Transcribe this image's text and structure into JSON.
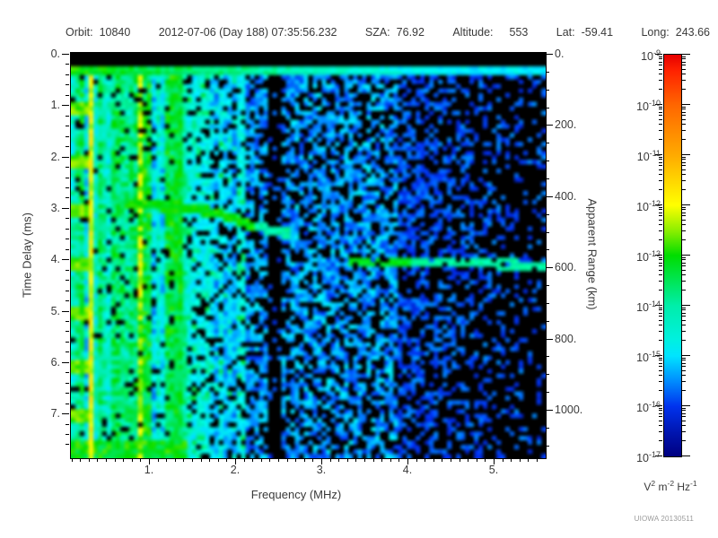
{
  "header": {
    "orbit_label": "Orbit:",
    "orbit": "10840",
    "datetime": "2012-07-06 (Day 188) 07:35:56.232",
    "sza_label": "SZA:",
    "sza": "76.92",
    "altitude_label": "Altitude:",
    "altitude": "553",
    "lat_label": "Lat:",
    "lat": "-59.41",
    "long_label": "Long:",
    "long": "243.66"
  },
  "watermark": "UIOWA 20130511",
  "chart_data": {
    "type": "heatmap",
    "subtype": "radar-sounder-ionogram-spectrogram",
    "xlabel": "Frequency (MHz)",
    "ylabel_left": "Time Delay (ms)",
    "ylabel_right": "Apparent Range (km)",
    "xlim_mhz": [
      0.08,
      5.6
    ],
    "ylim_ms": [
      0,
      7.85
    ],
    "ylim_right_km": [
      0,
      1135
    ],
    "grid": false,
    "xticks": {
      "values": [
        1,
        2,
        3,
        4,
        5
      ],
      "labels": [
        "1.",
        "2.",
        "3.",
        "4.",
        "5."
      ],
      "minor_step": 0.1
    },
    "yticks": {
      "values": [
        0,
        1,
        2,
        3,
        4,
        5,
        6,
        7
      ],
      "labels": [
        "0.",
        "1.",
        "2.",
        "3.",
        "4.",
        "5.",
        "6.",
        "7."
      ],
      "minor_step": 0.2
    },
    "right_ticks": {
      "values": [
        0,
        200,
        400,
        600,
        800,
        1000
      ],
      "labels": [
        "0.",
        "200.",
        "400.",
        "600.",
        "800.",
        "1000."
      ],
      "minor_step": 50
    },
    "colorbar": {
      "scale": "log",
      "tick_exponents": [
        -9,
        -10,
        -11,
        -12,
        -13,
        -14,
        -15,
        -16,
        -17
      ],
      "unit_segments": [
        {
          "base": "V",
          "exp": "2"
        },
        {
          "base": "m",
          "exp": "-2"
        },
        {
          "base": "Hz",
          "exp": "-1"
        }
      ],
      "gradient_stops": [
        {
          "pct": 0,
          "color": "#e60000"
        },
        {
          "pct": 4,
          "color": "#ff2200"
        },
        {
          "pct": 12.5,
          "color": "#ff6600"
        },
        {
          "pct": 25,
          "color": "#ffaa00"
        },
        {
          "pct": 34,
          "color": "#ffe800"
        },
        {
          "pct": 37.5,
          "color": "#ffff00"
        },
        {
          "pct": 44,
          "color": "#88ee00"
        },
        {
          "pct": 50,
          "color": "#00dd00"
        },
        {
          "pct": 62.5,
          "color": "#00eeaa"
        },
        {
          "pct": 71,
          "color": "#00f0e0"
        },
        {
          "pct": 75,
          "color": "#00e4ff"
        },
        {
          "pct": 81,
          "color": "#0090ff"
        },
        {
          "pct": 87.5,
          "color": "#0033ee"
        },
        {
          "pct": 94,
          "color": "#0015b0"
        },
        {
          "pct": 100,
          "color": "#000080"
        }
      ]
    },
    "features": {
      "transmit_pulse_band": {
        "delay_range_ms": [
          0.19,
          0.4
        ],
        "intensity_by_freq": [
          [
            0,
            0.46
          ],
          [
            2.6,
            0.33
          ],
          [
            4.2,
            0.22
          ]
        ]
      },
      "top_blank_band_ms": [
        0,
        0.19
      ],
      "plasma_line_freq_mhz": 0.33,
      "bright_column_freq_mhz": 1.35,
      "vertical_stripe_region_max_mhz": 1.42,
      "medium_stripe_region_max_mhz": 2.1,
      "blank_freq_band_mhz": [
        2.35,
        2.52
      ],
      "ionosphere_echo_trace": [
        [
          0.72,
          2.96
        ],
        [
          1.1,
          2.96
        ],
        [
          1.41,
          3.0
        ],
        [
          1.77,
          3.1
        ],
        [
          2.08,
          3.28
        ],
        [
          2.34,
          3.42
        ],
        [
          2.64,
          3.52
        ]
      ],
      "ground_echo_trace": [
        [
          3.3,
          4.1
        ],
        [
          4.0,
          4.08
        ],
        [
          4.7,
          4.1
        ],
        [
          5.6,
          4.12
        ]
      ],
      "receiver_marker_delays_ms": [
        1.08,
        2.09,
        3.09,
        4.1,
        5.1,
        6.11,
        7.1
      ],
      "bottom_band": {
        "freq_max_mhz": 1.45,
        "delay_range_ms": [
          7.58,
          7.84
        ]
      },
      "noise": {
        "left_density": 0.92,
        "medium_density": 0.8,
        "blue_density": 0.62,
        "right_density_at_3_9": 0.6,
        "right_density_falloff_per_mhz": 0.25,
        "right_density_min": 0.15
      }
    }
  }
}
